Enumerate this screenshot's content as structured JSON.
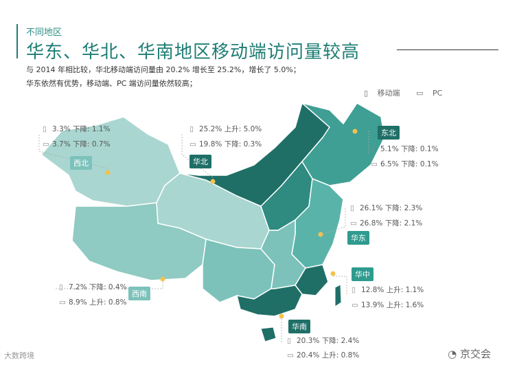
{
  "header": {
    "eyebrow": "不同地区",
    "title": "华东、华北、华南地区移动端访问量较高",
    "line1": "与 2014 年相比较，华北移动端访问量由 20.2% 增长至 25.2%，增长了 5.0%；",
    "line2": "华东依然有优势，移动端、PC 端访问量依然较高；"
  },
  "legend": {
    "mobile": "移动端",
    "pc": "PC"
  },
  "icons": {
    "mobile": "mobile-phone-icon",
    "pc": "laptop-icon"
  },
  "colors": {
    "dark": "#1f6f67",
    "mid": "#2f9b8e",
    "light": "#7cc2bb",
    "pale": "#a9d6d0",
    "marker": "#f3c24e"
  },
  "regions": {
    "northwest": {
      "label": "西北",
      "mobile": "3.3% 下降: 1.1%",
      "pc": "3.7% 下降: 0.7%"
    },
    "north": {
      "label": "华北",
      "mobile": "25.2% 上升: 5.0%",
      "pc": "19.8% 下降: 0.3%"
    },
    "northeast": {
      "label": "东北",
      "mobile": "5.1% 下降: 0.1%",
      "pc": "6.5% 下降: 0.1%"
    },
    "east": {
      "label": "华东",
      "mobile": "26.1% 下降: 2.3%",
      "pc": "26.8% 下降: 2.1%"
    },
    "southwest": {
      "label": "西南",
      "mobile": "7.2% 下降: 0.4%",
      "pc": "8.9% 上升: 0.8%"
    },
    "central": {
      "label": "华中",
      "mobile": "12.8% 上升: 1.1%",
      "pc": "13.9% 上升: 1.6%"
    },
    "south": {
      "label": "华南",
      "mobile": "20.3% 下降: 2.4%",
      "pc": "20.4% 上升: 0.8%"
    }
  },
  "brand": "京交会",
  "watermark": "大数跨境"
}
